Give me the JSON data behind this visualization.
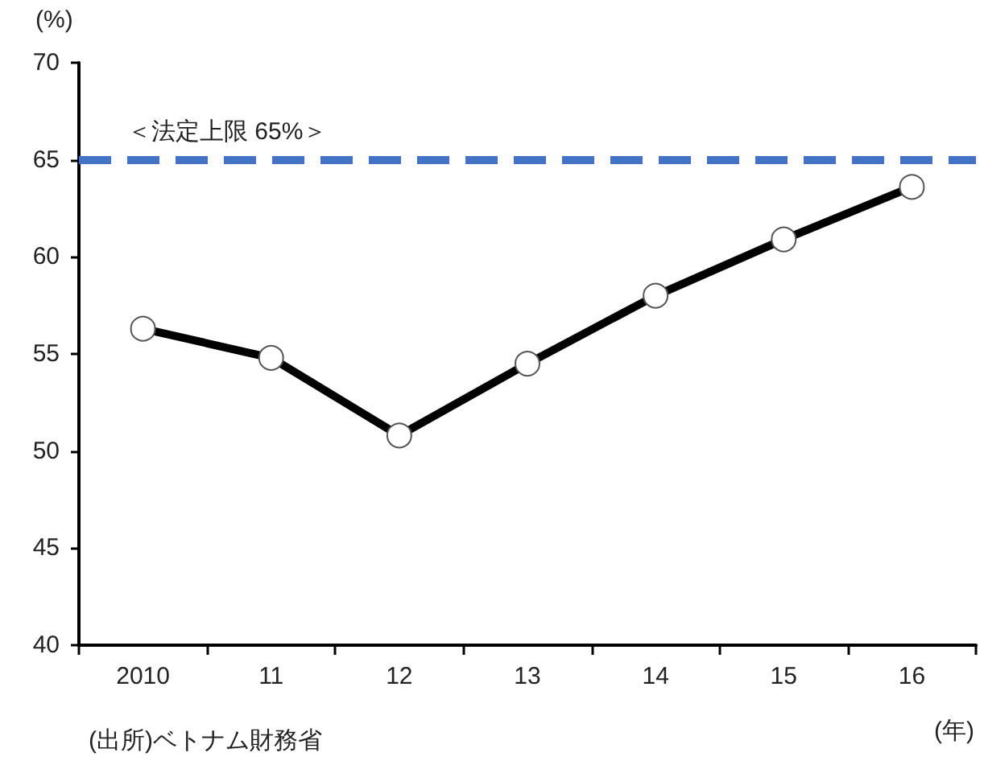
{
  "chart_data": {
    "type": "line",
    "ylabel": "(%)",
    "xlabel": "(年)",
    "categories": [
      "2010",
      "11",
      "12",
      "13",
      "14",
      "15",
      "16"
    ],
    "series": [
      {
        "color": "#000000",
        "values": [
          56.3,
          54.8,
          50.8,
          54.5,
          58.0,
          60.9,
          63.6
        ]
      }
    ],
    "ylim": [
      40,
      70
    ],
    "yticks": [
      40,
      45,
      50,
      55,
      60,
      65,
      70
    ],
    "grid": false,
    "marker": "circle",
    "line_style": "solid",
    "ref_lines": [
      {
        "axis": "y",
        "value": 65,
        "label": "＜法定上限 65%＞",
        "color": "#4472c4",
        "line_style": "dashed"
      }
    ],
    "annotations": [
      "(出所)ベトナム財務省"
    ]
  }
}
